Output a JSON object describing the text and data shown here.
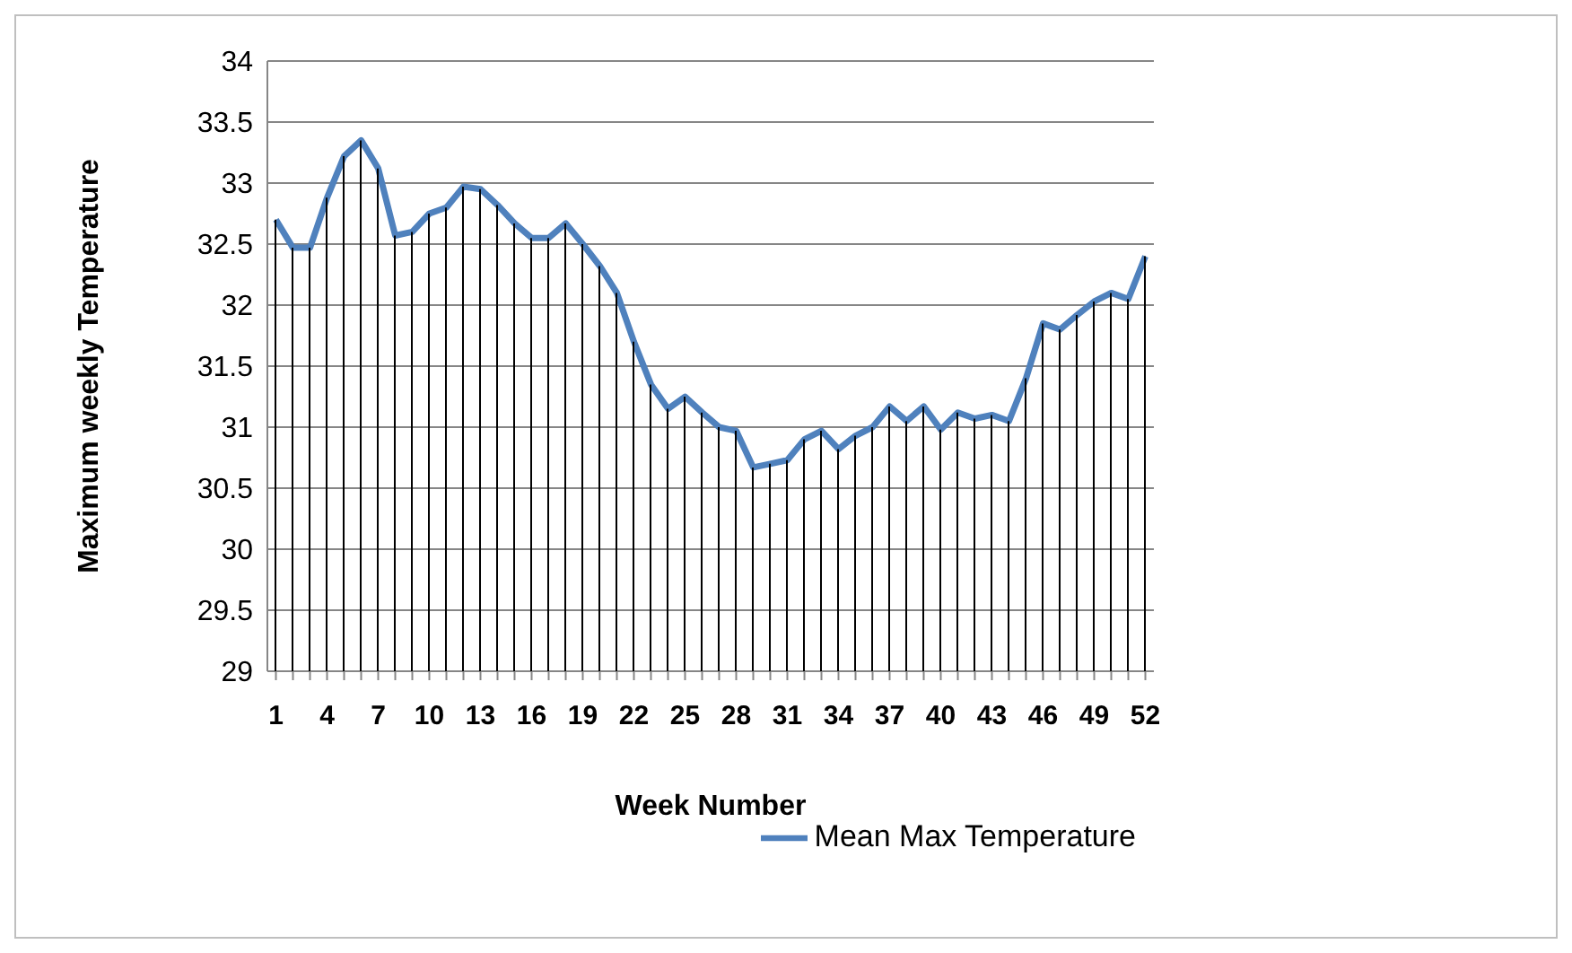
{
  "chart_data": {
    "type": "line",
    "xlabel": "Week Number",
    "ylabel": "Maximum weekly Temperature",
    "categories": [
      "1",
      null,
      null,
      "4",
      null,
      null,
      "7",
      null,
      null,
      "10",
      null,
      null,
      "13",
      null,
      null,
      "16",
      null,
      null,
      "19",
      null,
      null,
      "22",
      null,
      null,
      "25",
      null,
      null,
      "28",
      null,
      null,
      "31",
      null,
      null,
      "34",
      null,
      null,
      "37",
      null,
      null,
      "40",
      null,
      null,
      "43",
      null,
      null,
      "46",
      null,
      null,
      "49",
      null,
      null,
      "52"
    ],
    "series": [
      {
        "type": "bar",
        "color": "#000000",
        "values": [
          32.7,
          32.47,
          32.47,
          32.88,
          33.22,
          33.35,
          33.12,
          32.57,
          32.6,
          32.75,
          32.8,
          32.97,
          32.95,
          32.82,
          32.67,
          32.55,
          32.55,
          32.67,
          32.5,
          32.32,
          32.1,
          31.7,
          31.35,
          31.15,
          31.25,
          31.12,
          31.0,
          30.97,
          30.67,
          30.7,
          30.73,
          30.9,
          30.97,
          30.82,
          30.93,
          31.0,
          31.17,
          31.05,
          31.17,
          30.98,
          31.12,
          31.07,
          31.1,
          31.05,
          31.4,
          31.85,
          31.8,
          31.92,
          32.03,
          32.1,
          32.05,
          32.4
        ]
      },
      {
        "name": "Mean Max Temperature",
        "color": "#4f81bd",
        "values": [
          32.7,
          32.47,
          32.47,
          32.88,
          33.22,
          33.35,
          33.12,
          32.57,
          32.6,
          32.75,
          32.8,
          32.97,
          32.95,
          32.82,
          32.67,
          32.55,
          32.55,
          32.67,
          32.5,
          32.32,
          32.1,
          31.7,
          31.35,
          31.15,
          31.25,
          31.12,
          31.0,
          30.97,
          30.67,
          30.7,
          30.73,
          30.9,
          30.97,
          30.82,
          30.93,
          31.0,
          31.17,
          31.05,
          31.17,
          30.98,
          31.12,
          31.07,
          31.1,
          31.05,
          31.4,
          31.85,
          31.8,
          31.92,
          32.03,
          32.1,
          32.05,
          32.4
        ]
      }
    ],
    "ylim": [
      29,
      34
    ],
    "yticks": [
      29,
      29.5,
      30,
      30.5,
      31,
      31.5,
      32,
      32.5,
      33,
      33.5,
      34
    ],
    "grid": "y",
    "legend": "bottom right",
    "marker": "none",
    "line_style": "solid"
  }
}
